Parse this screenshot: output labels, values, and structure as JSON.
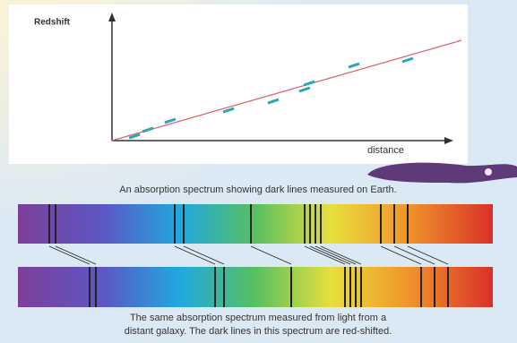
{
  "chart_data": {
    "type": "scatter",
    "y_label": "Redshift",
    "x_label": "distance",
    "x": [
      6.7,
      10.7,
      17.3,
      34.7,
      48,
      57.3,
      58.7,
      72,
      88
    ],
    "values": [
      3.6,
      8.8,
      16.1,
      24.8,
      32.1,
      41.6,
      46.7,
      61.3,
      65.7
    ],
    "color": "#2aa6b4",
    "xlim": [
      0,
      100
    ],
    "ylim": [
      0,
      100
    ]
  },
  "captions": {
    "earth": "An absorption spectrum showing dark lines measured on Earth.",
    "galaxy_line1": "The same absorption spectrum measured from light from a",
    "galaxy_line2": "distant galaxy. The dark lines in this spectrum are red-shifted."
  }
}
